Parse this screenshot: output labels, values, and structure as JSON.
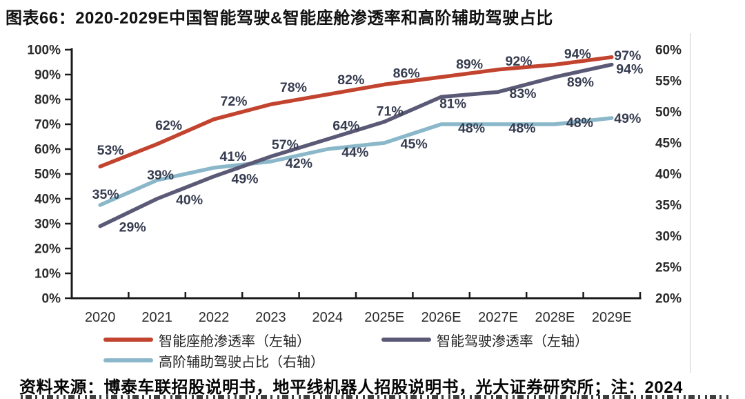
{
  "title": "图表66：2020-2029E中国智能驾驶&智能座舱渗透率和高阶辅助驾驶占比",
  "source_note": "资料来源：博泰车联招股说明书，地平线机器人招股说明书，光大证券研究所；注：2024",
  "chart_data": {
    "type": "line",
    "title": "2020-2029E中国智能驾驶&智能座舱渗透率和高阶辅助驾驶占比",
    "categories": [
      "2020",
      "2021",
      "2022",
      "2023",
      "2024",
      "2025E",
      "2026E",
      "2027E",
      "2028E",
      "2029E"
    ],
    "series": [
      {
        "name": "智能座舱渗透率（左轴）",
        "axis": "left",
        "color": "#c2432e",
        "values": [
          53,
          62,
          72,
          78,
          82,
          86,
          89,
          92,
          94,
          97
        ]
      },
      {
        "name": "智能驾驶渗透率（左轴）",
        "axis": "left",
        "color": "#5b5a76",
        "values": [
          29,
          40,
          49,
          57,
          64,
          71,
          81,
          83,
          89,
          94
        ]
      },
      {
        "name": "高阶辅助驾驶占比（右轴）",
        "axis": "right",
        "color": "#8ab7c9",
        "values": [
          35,
          39,
          41,
          42,
          44,
          45,
          48,
          48,
          48,
          49
        ]
      }
    ],
    "left_axis": {
      "min": 0,
      "max": 100,
      "step": 10,
      "tick_suffix": "%"
    },
    "right_axis": {
      "min": 20,
      "max": 60,
      "step": 5,
      "tick_suffix": "%"
    },
    "data_label_suffix": "%",
    "legend_position": "bottom",
    "grid": false
  }
}
